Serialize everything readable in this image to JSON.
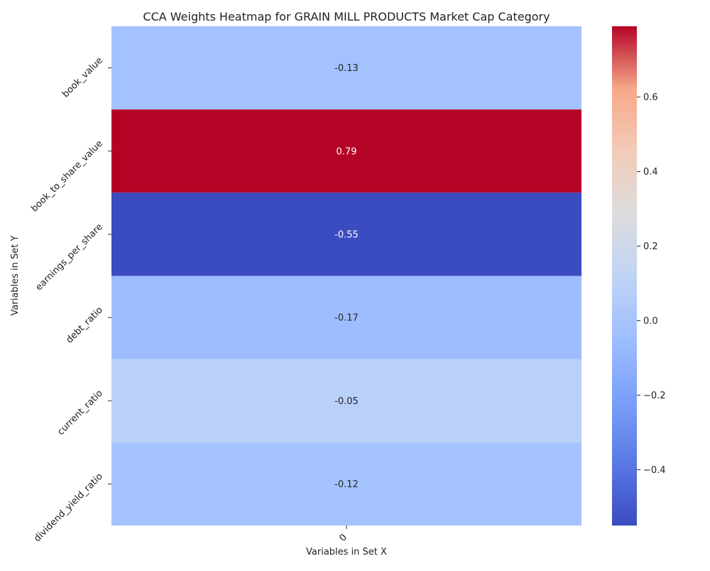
{
  "chart_data": {
    "type": "heatmap",
    "title": "CCA Weights Heatmap for GRAIN MILL PRODUCTS Market Cap Category",
    "xlabel": "Variables in Set X",
    "ylabel": "Variables in Set Y",
    "x_categories": [
      "0"
    ],
    "y_categories": [
      "book_value",
      "book_to_share_value",
      "earnings_per_share",
      "debt_ratio",
      "current_ratio",
      "dividend_yield_ratio"
    ],
    "values": [
      [
        -0.13
      ],
      [
        0.79
      ],
      [
        -0.55
      ],
      [
        -0.17
      ],
      [
        -0.05
      ],
      [
        -0.12
      ]
    ],
    "value_labels": [
      "-0.13",
      "0.79",
      "-0.55",
      "-0.17",
      "-0.05",
      "-0.12"
    ],
    "colormap": "coolwarm",
    "color_range": [
      -0.55,
      0.79
    ],
    "colorbar": {
      "ticks": [
        -0.4,
        -0.2,
        0.0,
        0.2,
        0.4,
        0.6
      ],
      "tick_labels": [
        "−0.4",
        "−0.2",
        "0.0",
        "0.2",
        "0.4",
        "0.6"
      ]
    },
    "cell_colors": [
      "#a3c2fe",
      "#b40426",
      "#3b4cc0",
      "#9dbdff",
      "#b9d0f9",
      "#a5c3fe"
    ]
  }
}
